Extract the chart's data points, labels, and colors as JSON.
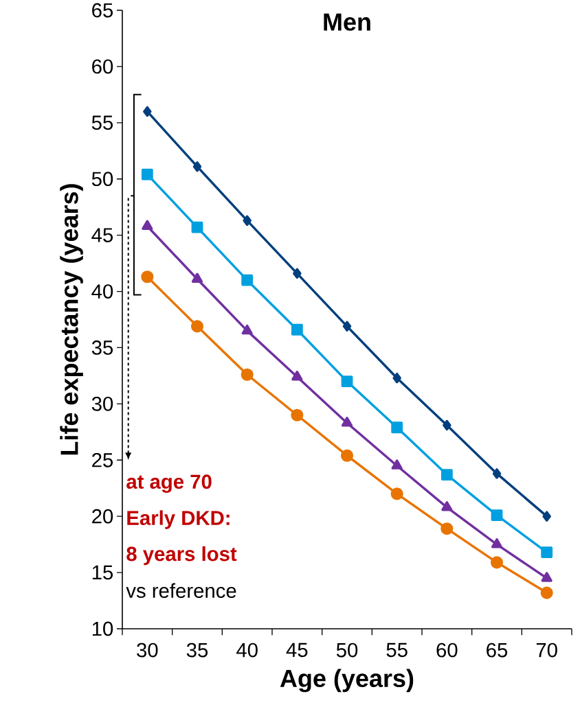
{
  "chart_data": {
    "type": "line",
    "title": "Men",
    "xlabel": "Age (years)",
    "ylabel": "Life expectancy (years)",
    "categories": [
      "30",
      "35",
      "40",
      "45",
      "50",
      "55",
      "60",
      "65",
      "70"
    ],
    "series": [
      {
        "color": "#003f7d",
        "marker": "diamond",
        "values": [
          56.0,
          51.1,
          46.3,
          41.6,
          36.9,
          32.3,
          28.1,
          23.8,
          20.0
        ]
      },
      {
        "color": "#00a0e0",
        "marker": "square",
        "values": [
          50.4,
          45.7,
          41.0,
          36.6,
          32.0,
          27.9,
          23.7,
          20.1,
          16.8
        ]
      },
      {
        "color": "#7030a0",
        "marker": "triangle",
        "values": [
          45.8,
          41.1,
          36.5,
          32.4,
          28.3,
          24.5,
          20.8,
          17.5,
          14.5
        ]
      },
      {
        "color": "#e87400",
        "marker": "circle",
        "values": [
          41.3,
          36.9,
          32.6,
          29.0,
          25.4,
          22.0,
          18.9,
          15.9,
          13.2
        ]
      }
    ],
    "ylim": [
      10,
      65
    ],
    "yticks": [
      10,
      15,
      20,
      25,
      30,
      35,
      40,
      45,
      50,
      55,
      60,
      65
    ],
    "annotations": [
      "at age 70",
      "Early DKD:",
      "8 years lost",
      "vs reference"
    ],
    "grid": false
  }
}
